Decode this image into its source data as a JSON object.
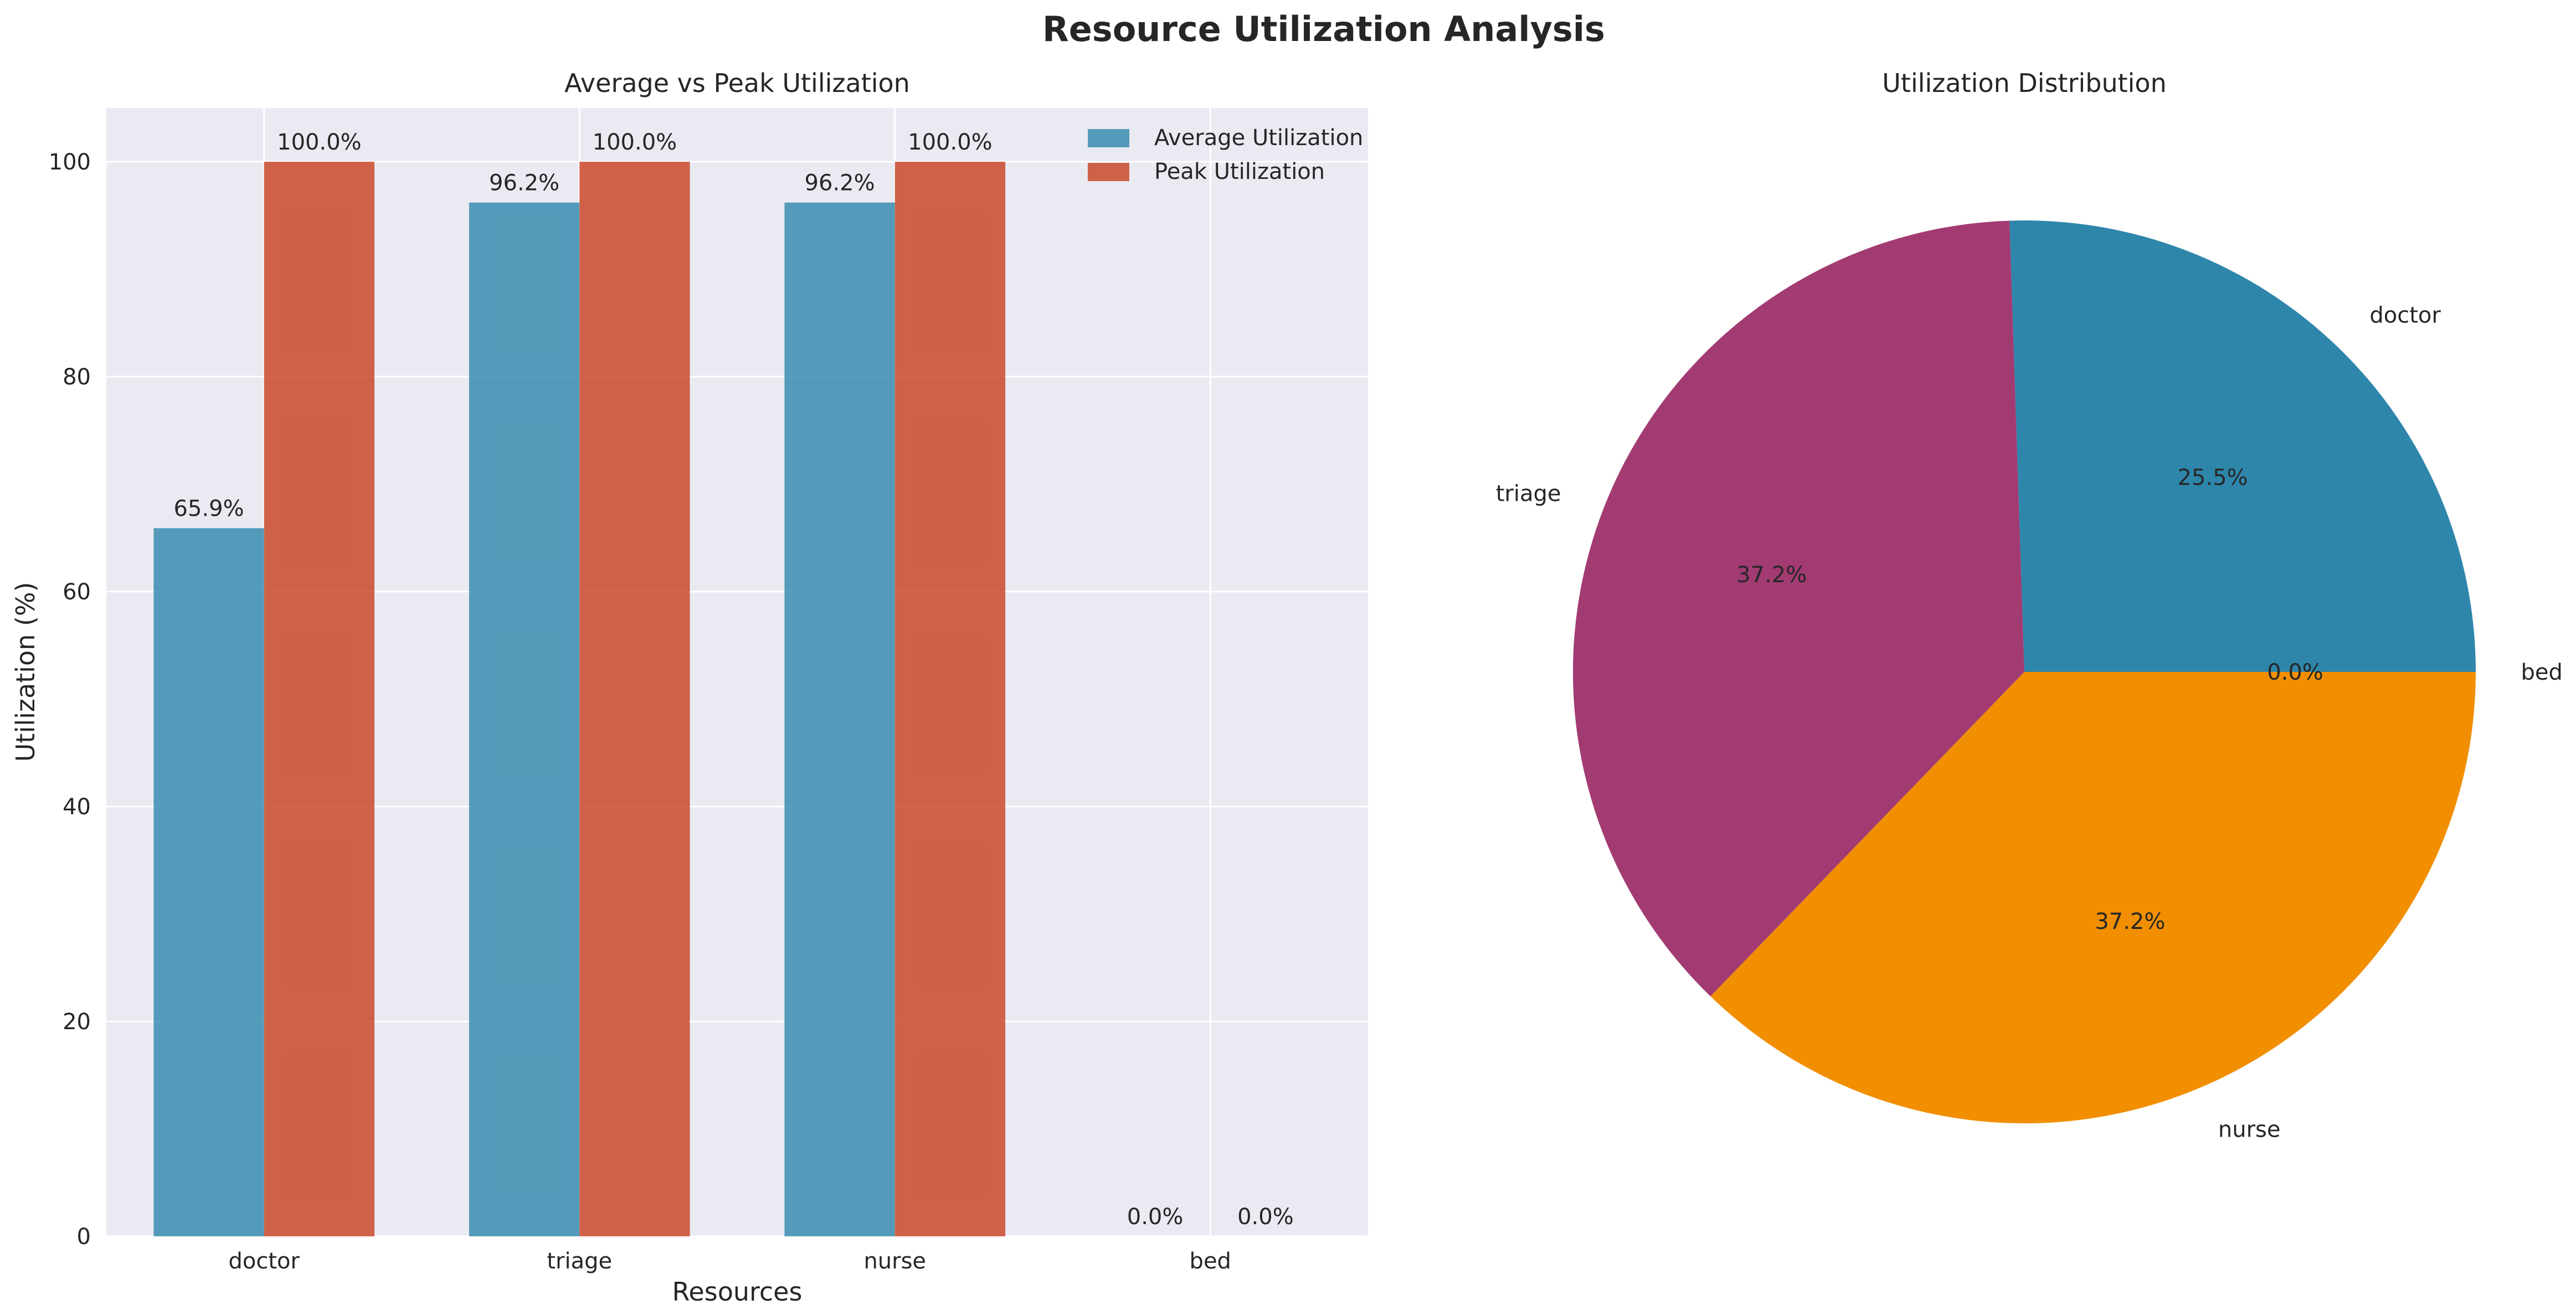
{
  "figure_title": "Resource Utilization Analysis",
  "colors": {
    "axes_bg": "#eaeaf2",
    "grid": "#ffffff",
    "average": "#2e86ab",
    "peak": "#c73e1d",
    "pie": [
      "#2e86ab",
      "#a23b72",
      "#f18f01",
      "#c73e1d"
    ]
  },
  "chart_data": [
    {
      "type": "bar",
      "title": "Average vs Peak Utilization",
      "xlabel": "Resources",
      "ylabel": "Utilization (%)",
      "categories": [
        "doctor",
        "triage",
        "nurse",
        "bed"
      ],
      "series": [
        {
          "name": "Average Utilization",
          "values": [
            65.9,
            96.2,
            96.2,
            0.0
          ],
          "labels": [
            "65.9%",
            "96.2%",
            "96.2%",
            "0.0%"
          ]
        },
        {
          "name": "Peak Utilization",
          "values": [
            100.0,
            100.0,
            100.0,
            0.0
          ],
          "labels": [
            "100.0%",
            "100.0%",
            "100.0%",
            "0.0%"
          ]
        }
      ],
      "ylim": [
        0,
        105
      ],
      "yticks": [
        0,
        20,
        40,
        60,
        80,
        100
      ],
      "grid": true,
      "legend": "top-right"
    },
    {
      "type": "pie",
      "title": "Utilization Distribution",
      "labels": [
        "doctor",
        "triage",
        "nurse",
        "bed"
      ],
      "values": [
        25.5,
        37.2,
        37.2,
        0.0
      ],
      "autopct": [
        "25.5%",
        "37.2%",
        "37.2%",
        "0.0%"
      ]
    }
  ]
}
